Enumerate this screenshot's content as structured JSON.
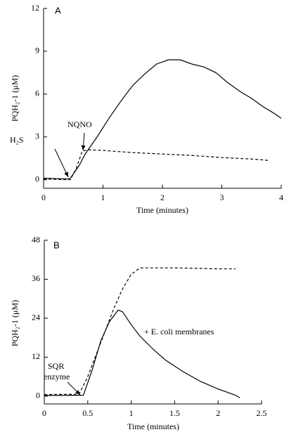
{
  "chart_data": [
    {
      "type": "line",
      "panel": "A",
      "xlabel": "Time (minutes)",
      "ylabel": "PQH₂-1 (μM)",
      "xlim": [
        0,
        4
      ],
      "xticks": [
        0,
        1,
        2,
        3,
        4
      ],
      "ylim": [
        -0.6,
        12
      ],
      "yticks": [
        0,
        3,
        6,
        9,
        12
      ],
      "annotations": [
        "H₂S",
        "NQNO"
      ],
      "series": [
        {
          "color": "#000000",
          "linestyle": "solid",
          "x": [
            0,
            0.4,
            0.45,
            0.6,
            0.7,
            0.9,
            1.1,
            1.3,
            1.5,
            1.7,
            1.9,
            2.1,
            2.3,
            2.5,
            2.7,
            2.9,
            3.1,
            3.3,
            3.5,
            3.7,
            3.9,
            4.0
          ],
          "values": [
            0.1,
            0.05,
            0.1,
            1.0,
            1.8,
            3.0,
            4.3,
            5.5,
            6.6,
            7.4,
            8.1,
            8.4,
            8.4,
            8.1,
            7.9,
            7.5,
            6.8,
            6.2,
            5.7,
            5.1,
            4.6,
            4.3
          ]
        },
        {
          "color": "#000000",
          "linestyle": "dashed",
          "x": [
            0,
            0.45,
            0.55,
            0.65,
            0.75,
            1.0,
            1.5,
            2.0,
            2.5,
            3.0,
            3.5,
            3.8
          ],
          "values": [
            0.05,
            0.0,
            0.8,
            2.0,
            2.1,
            2.05,
            1.9,
            1.8,
            1.7,
            1.55,
            1.45,
            1.35
          ]
        }
      ]
    },
    {
      "type": "line",
      "panel": "B",
      "xlabel": "Time (minutes)",
      "ylabel": "PQH₂-1 (μM)",
      "xlim": [
        0,
        2.5
      ],
      "xticks": [
        0,
        0.5,
        1,
        1.5,
        2,
        2.5
      ],
      "ylim": [
        -2.4,
        48
      ],
      "yticks": [
        0,
        12,
        24,
        36,
        48
      ],
      "annotations": [
        "SQR",
        "enzyme",
        "+ E. coli membranes"
      ],
      "series": [
        {
          "color": "#000000",
          "linestyle": "solid",
          "x": [
            0,
            0.45,
            0.55,
            0.65,
            0.75,
            0.85,
            0.9,
            1.0,
            1.1,
            1.25,
            1.4,
            1.6,
            1.8,
            2.0,
            2.2,
            2.25
          ],
          "values": [
            0.2,
            0.3,
            8,
            17,
            23,
            26.5,
            26,
            22,
            18.5,
            14.5,
            11,
            7.5,
            4.5,
            2.2,
            0.3,
            -0.5
          ]
        },
        {
          "color": "#000000",
          "linestyle": "dashed",
          "x": [
            0,
            0.4,
            0.5,
            0.6,
            0.7,
            0.8,
            0.9,
            1.0,
            1.1,
            1.5,
            2.0,
            2.2
          ],
          "values": [
            0.5,
            0.6,
            6,
            13,
            20,
            27,
            33,
            37.5,
            39.5,
            39.5,
            39.2,
            39.2
          ]
        }
      ]
    }
  ]
}
